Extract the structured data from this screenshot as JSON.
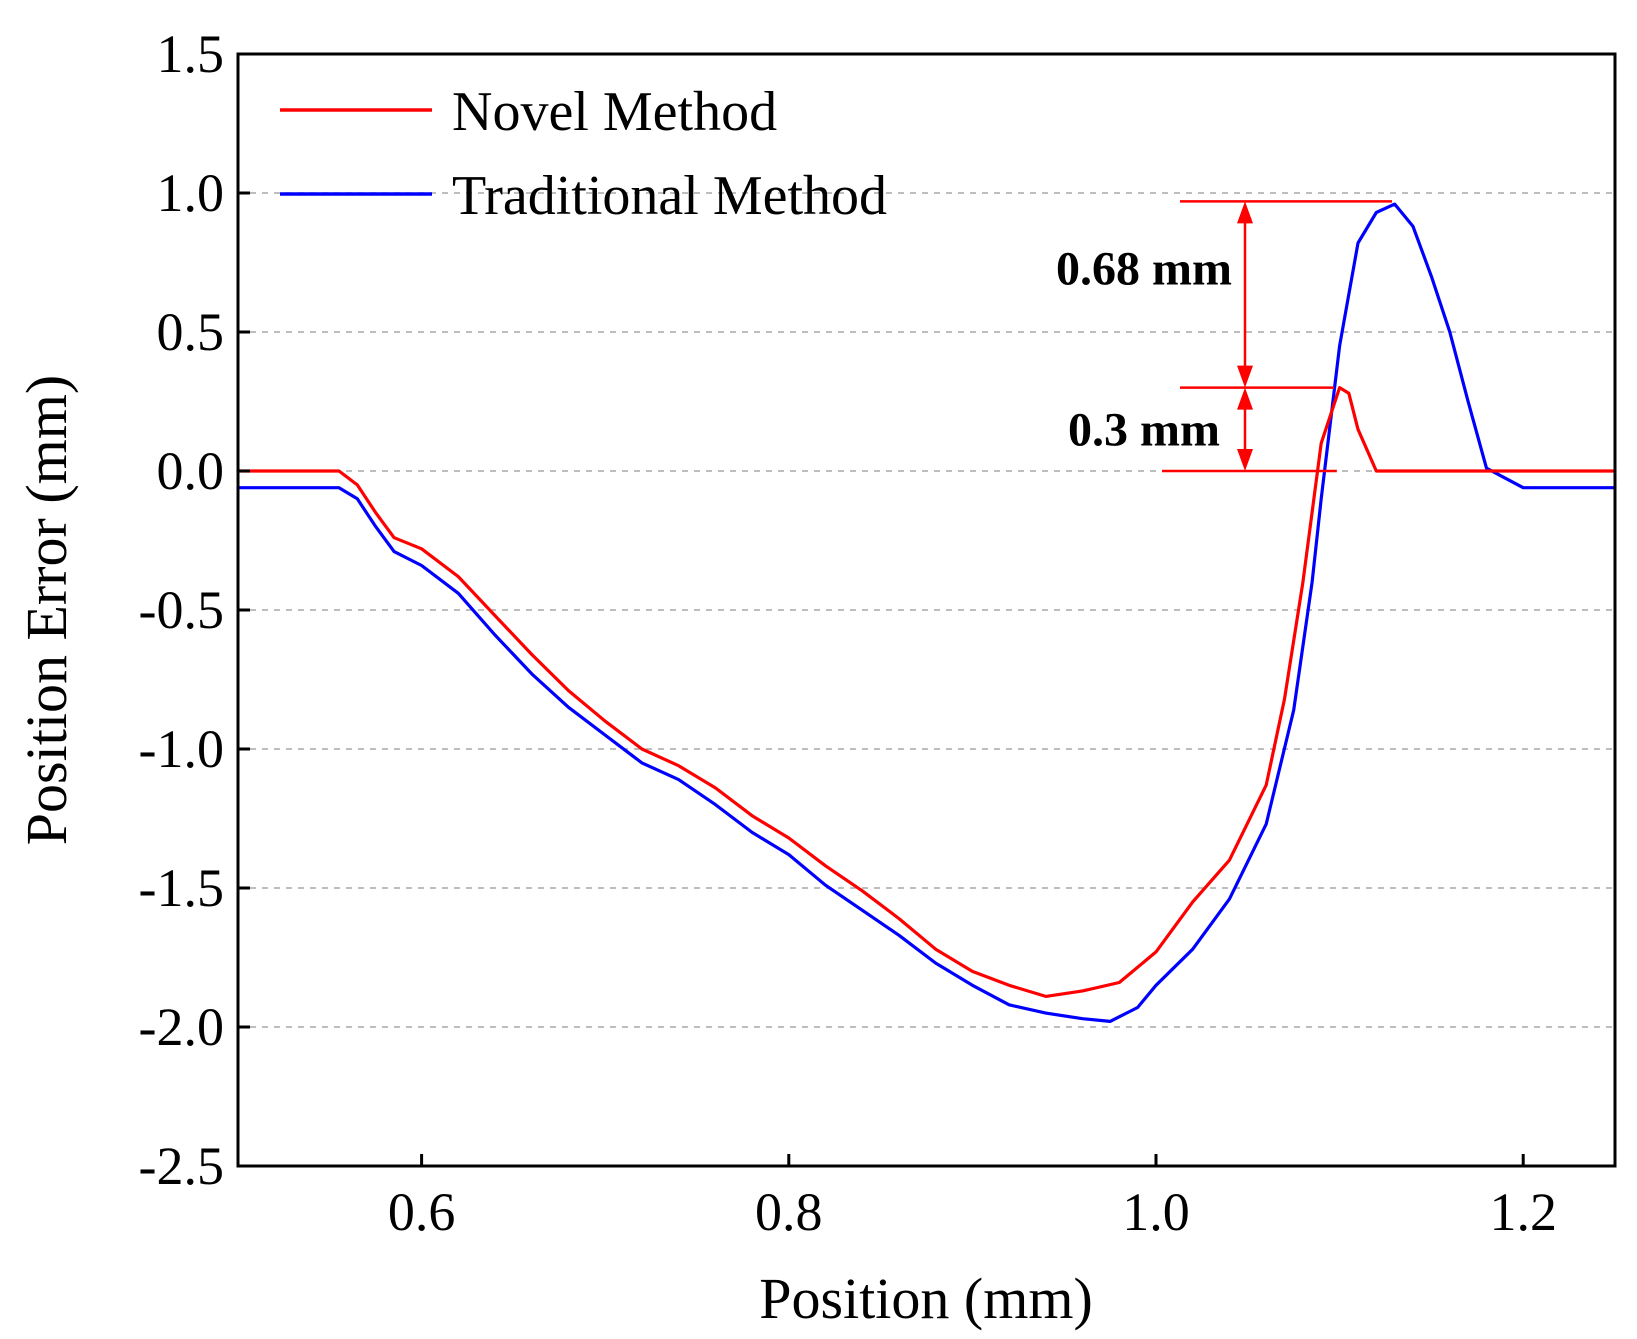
{
  "chart_data": {
    "type": "line",
    "xlabel": "Position (mm)",
    "ylabel": "Position Error (mm)",
    "xlim": [
      0.5,
      1.25
    ],
    "ylim": [
      -2.5,
      1.5
    ],
    "x_ticks": [
      0.6,
      0.8,
      1.0,
      1.2
    ],
    "x_tick_labels": [
      "0.6",
      "0.8",
      "1.0",
      "1.2"
    ],
    "y_ticks": [
      1.5,
      1.0,
      0.5,
      0.0,
      -0.5,
      -1.0,
      -1.5,
      -2.0,
      -2.5
    ],
    "y_tick_labels": [
      "1.5",
      "1.0",
      "0.5",
      "0.0",
      "-0.5",
      "-1.0",
      "-1.5",
      "-2.0",
      "-2.5"
    ],
    "grid": true,
    "legend_position": "top-left",
    "series": [
      {
        "name": "Novel Method",
        "color": "#ff0000",
        "x": [
          0.5,
          0.52,
          0.54,
          0.555,
          0.565,
          0.575,
          0.585,
          0.6,
          0.62,
          0.64,
          0.66,
          0.68,
          0.7,
          0.72,
          0.74,
          0.76,
          0.78,
          0.8,
          0.82,
          0.84,
          0.86,
          0.88,
          0.9,
          0.92,
          0.94,
          0.96,
          0.98,
          1.0,
          1.02,
          1.04,
          1.06,
          1.07,
          1.08,
          1.09,
          1.1,
          1.105,
          1.11,
          1.12,
          1.14,
          1.16,
          1.18,
          1.2,
          1.22,
          1.25
        ],
        "y": [
          0.0,
          0.0,
          0.0,
          0.0,
          -0.05,
          -0.15,
          -0.24,
          -0.28,
          -0.38,
          -0.52,
          -0.66,
          -0.79,
          -0.9,
          -1.0,
          -1.06,
          -1.14,
          -1.24,
          -1.32,
          -1.42,
          -1.51,
          -1.61,
          -1.72,
          -1.8,
          -1.85,
          -1.89,
          -1.87,
          -1.84,
          -1.73,
          -1.55,
          -1.4,
          -1.13,
          -0.82,
          -0.4,
          0.1,
          0.3,
          0.28,
          0.15,
          0.0,
          0.0,
          0.0,
          0.0,
          0.0,
          0.0,
          0.0
        ]
      },
      {
        "name": "Traditional Method",
        "color": "#0000ff",
        "x": [
          0.5,
          0.52,
          0.54,
          0.555,
          0.565,
          0.575,
          0.585,
          0.6,
          0.62,
          0.64,
          0.66,
          0.68,
          0.7,
          0.72,
          0.74,
          0.76,
          0.78,
          0.8,
          0.82,
          0.84,
          0.86,
          0.88,
          0.9,
          0.92,
          0.94,
          0.96,
          0.975,
          0.99,
          1.0,
          1.02,
          1.04,
          1.06,
          1.075,
          1.085,
          1.09,
          1.1,
          1.11,
          1.12,
          1.13,
          1.14,
          1.15,
          1.16,
          1.17,
          1.18,
          1.2,
          1.22,
          1.25
        ],
        "y": [
          -0.06,
          -0.06,
          -0.06,
          -0.06,
          -0.1,
          -0.2,
          -0.29,
          -0.34,
          -0.44,
          -0.59,
          -0.73,
          -0.85,
          -0.95,
          -1.05,
          -1.11,
          -1.2,
          -1.3,
          -1.38,
          -1.49,
          -1.58,
          -1.67,
          -1.77,
          -1.85,
          -1.92,
          -1.95,
          -1.97,
          -1.98,
          -1.93,
          -1.85,
          -1.72,
          -1.54,
          -1.27,
          -0.86,
          -0.4,
          -0.1,
          0.45,
          0.82,
          0.93,
          0.96,
          0.88,
          0.7,
          0.5,
          0.25,
          0.01,
          -0.06,
          -0.06,
          -0.06
        ]
      }
    ],
    "annotations": [
      {
        "text": "0.68 mm",
        "from": 0.3,
        "to": 0.97
      },
      {
        "text": "0.3 mm",
        "from": 0.0,
        "to": 0.3
      }
    ]
  }
}
